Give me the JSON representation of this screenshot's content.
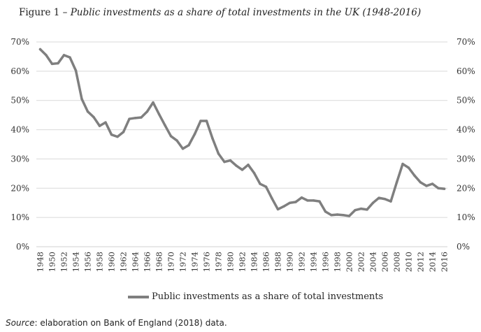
{
  "chart_data": {
    "type": "line",
    "title_prefix": "Figure 1 –",
    "title": "Public investments as a share of total investments in the UK (1948-2016)",
    "xlabel": "",
    "ylabel": "",
    "ylim": [
      0,
      0.7
    ],
    "yticks": [
      "0%",
      "10%",
      "20%",
      "30%",
      "40%",
      "50%",
      "60%",
      "70%"
    ],
    "grid": true,
    "legend_position": "bottom",
    "x": [
      1948,
      1949,
      1950,
      1951,
      1952,
      1953,
      1954,
      1955,
      1956,
      1957,
      1958,
      1959,
      1960,
      1961,
      1962,
      1963,
      1964,
      1965,
      1966,
      1967,
      1968,
      1969,
      1970,
      1971,
      1972,
      1973,
      1974,
      1975,
      1976,
      1977,
      1978,
      1979,
      1980,
      1981,
      1982,
      1983,
      1984,
      1985,
      1986,
      1987,
      1988,
      1989,
      1990,
      1991,
      1992,
      1993,
      1994,
      1995,
      1996,
      1997,
      1998,
      1999,
      2000,
      2001,
      2002,
      2003,
      2004,
      2005,
      2006,
      2007,
      2008,
      2009,
      2010,
      2011,
      2012,
      2013,
      2014,
      2015,
      2016
    ],
    "xtick_labels": [
      "1948",
      "1950",
      "1952",
      "1954",
      "1956",
      "1958",
      "1960",
      "1962",
      "1964",
      "1966",
      "1968",
      "1970",
      "1972",
      "1974",
      "1976",
      "1978",
      "1980",
      "1982",
      "1984",
      "1986",
      "1988",
      "1990",
      "1992",
      "1994",
      "1996",
      "1998",
      "2000",
      "2002",
      "2004",
      "2006",
      "2008",
      "2010",
      "2012",
      "2014",
      "2016"
    ],
    "series": [
      {
        "name": "Public investments as a share of total investments",
        "color": "#7f7f7f",
        "values": [
          0.675,
          0.655,
          0.625,
          0.627,
          0.655,
          0.647,
          0.602,
          0.505,
          0.462,
          0.443,
          0.413,
          0.425,
          0.383,
          0.376,
          0.392,
          0.437,
          0.44,
          0.442,
          0.462,
          0.493,
          0.453,
          0.415,
          0.378,
          0.363,
          0.335,
          0.347,
          0.385,
          0.43,
          0.43,
          0.37,
          0.318,
          0.29,
          0.295,
          0.277,
          0.263,
          0.28,
          0.252,
          0.215,
          0.205,
          0.165,
          0.128,
          0.138,
          0.15,
          0.153,
          0.168,
          0.158,
          0.158,
          0.155,
          0.12,
          0.108,
          0.11,
          0.108,
          0.105,
          0.125,
          0.13,
          0.127,
          0.15,
          0.167,
          0.163,
          0.155,
          0.22,
          0.283,
          0.27,
          0.243,
          0.22,
          0.208,
          0.215,
          0.2,
          0.198
        ]
      }
    ]
  },
  "source": {
    "label": "Source",
    "text": ": elaboration on Bank of England (2018) data."
  }
}
